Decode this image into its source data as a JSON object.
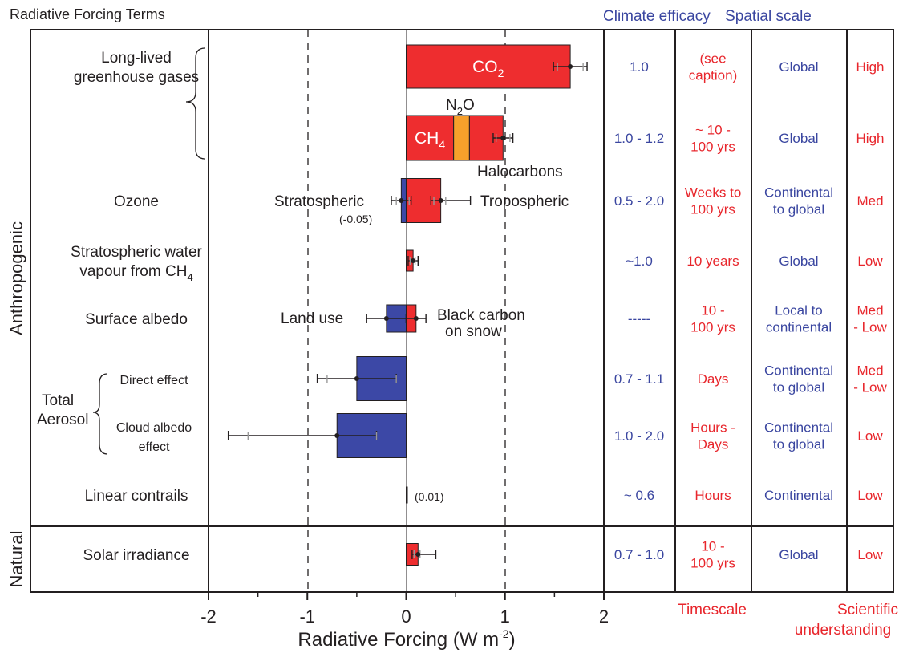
{
  "chart_data": {
    "type": "bar",
    "title": "Radiative Forcing Terms",
    "xlabel_main": "Radiative Forcing  (W m",
    "xlabel_exp": "-2",
    "xlabel_close": ")",
    "xlim": [
      -2,
      2
    ],
    "x_ticks": [
      "-2",
      "-1",
      "0",
      "1",
      "2"
    ],
    "headers": {
      "efficacy": "Climate efficacy",
      "spatial": "Spatial scale",
      "timescale": "Timescale",
      "understanding_1": "Scientific",
      "understanding_2": "understanding"
    },
    "groups": {
      "anthropogenic": "Anthropogenic",
      "natural": "Natural",
      "aerosol_1": "Total",
      "aerosol_2": "Aerosol"
    },
    "rows": [
      {
        "label": [
          "Long-lived",
          "greenhouse gases"
        ],
        "efficacy": [
          "1.0"
        ],
        "timescale": [
          "(see",
          "caption)"
        ],
        "spatial": [
          "Global"
        ],
        "understanding": [
          "High"
        ]
      },
      {
        "label": [],
        "efficacy": [
          "1.0 - 1.2"
        ],
        "timescale": [
          "~ 10 -",
          "100 yrs"
        ],
        "spatial": [
          "Global"
        ],
        "understanding": [
          "High"
        ]
      },
      {
        "label": [
          "Ozone"
        ],
        "efficacy": [
          "0.5 - 2.0"
        ],
        "timescale": [
          "Weeks to",
          "100 yrs"
        ],
        "spatial": [
          "Continental",
          "to global"
        ],
        "understanding": [
          "Med"
        ]
      },
      {
        "label": [
          "Stratospheric water",
          "vapour from CH"
        ],
        "label_sub": "4",
        "efficacy": [
          "~1.0"
        ],
        "timescale": [
          "10 years"
        ],
        "spatial": [
          "Global"
        ],
        "understanding": [
          "Low"
        ]
      },
      {
        "label": [
          "Surface albedo"
        ],
        "efficacy": [
          "-----"
        ],
        "timescale": [
          "10 -",
          "100 yrs"
        ],
        "spatial": [
          "Local to",
          "continental"
        ],
        "understanding": [
          "Med",
          "- Low"
        ]
      },
      {
        "label": [
          "Direct effect"
        ],
        "efficacy": [
          "0.7 - 1.1"
        ],
        "timescale": [
          "Days"
        ],
        "spatial": [
          "Continental",
          "to global"
        ],
        "understanding": [
          "Med",
          "- Low"
        ]
      },
      {
        "label": [
          "Cloud albedo",
          "effect"
        ],
        "efficacy": [
          "1.0 - 2.0"
        ],
        "timescale": [
          "Hours -",
          "Days"
        ],
        "spatial": [
          "Continental",
          "to global"
        ],
        "understanding": [
          "Low"
        ]
      },
      {
        "label": [
          "Linear  contrails"
        ],
        "efficacy": [
          "~ 0.6"
        ],
        "timescale": [
          "Hours"
        ],
        "spatial": [
          "Continental"
        ],
        "understanding": [
          "Low"
        ]
      },
      {
        "label": [
          "Solar irradiance"
        ],
        "efficacy": [
          "0.7 - 1.0"
        ],
        "timescale": [
          "10 -",
          "100 yrs"
        ],
        "spatial": [
          "Global"
        ],
        "understanding": [
          "Low"
        ]
      }
    ],
    "bars": [
      {
        "row": 0,
        "start": 0,
        "end": 1.66,
        "color": "#ee2d2f",
        "text": "CO",
        "sub": "2"
      },
      {
        "row": 1,
        "start": 0,
        "end": 0.48,
        "color": "#ee2d2f",
        "text": "CH",
        "sub": "4"
      },
      {
        "row": 1,
        "start": 0.48,
        "end": 0.64,
        "color": "#f7a02b"
      },
      {
        "row": 1,
        "start": 0.64,
        "end": 0.98,
        "color": "#ee2d2f"
      },
      {
        "row": 2,
        "start": -0.05,
        "end": 0,
        "color": "#3c48a6"
      },
      {
        "row": 2,
        "start": 0,
        "end": 0.35,
        "color": "#ee2d2f"
      },
      {
        "row": 3,
        "start": 0,
        "end": 0.07,
        "color": "#ee2d2f"
      },
      {
        "row": 4,
        "start": -0.2,
        "end": 0,
        "color": "#3c48a6"
      },
      {
        "row": 4,
        "start": 0,
        "end": 0.1,
        "color": "#ee2d2f"
      },
      {
        "row": 5,
        "start": -0.5,
        "end": 0,
        "color": "#3c48a6"
      },
      {
        "row": 6,
        "start": -0.7,
        "end": 0,
        "color": "#3c48a6"
      },
      {
        "row": 7,
        "start": 0,
        "end": 0.01,
        "color": "#ee2d2f"
      },
      {
        "row": 8,
        "start": 0,
        "end": 0.12,
        "color": "#ee2d2f"
      }
    ],
    "errors": [
      {
        "row": 0,
        "value": 1.66,
        "low": 1.49,
        "high": 1.83,
        "inner": [
          1.53,
          1.79
        ]
      },
      {
        "row": 1,
        "value": 0.98,
        "low": 0.88,
        "high": 1.08,
        "inner": [
          0.91,
          1.05
        ]
      },
      {
        "row": 2,
        "value": -0.05,
        "low": -0.15,
        "high": 0.05,
        "inner": [
          -0.1,
          0.03
        ]
      },
      {
        "row": 2,
        "value": 0.35,
        "low": 0.25,
        "high": 0.65,
        "inner": [
          0.28,
          0.4
        ]
      },
      {
        "row": 3,
        "value": 0.07,
        "low": 0.02,
        "high": 0.12,
        "inner": [
          0.04,
          0.09
        ]
      },
      {
        "row": 4,
        "value": -0.2,
        "low": -0.4,
        "high": 0.0
      },
      {
        "row": 4,
        "value": 0.1,
        "low": 0.0,
        "high": 0.2
      },
      {
        "row": 5,
        "value": -0.5,
        "low": -0.9,
        "high": -0.1,
        "inner": [
          -0.8,
          -0.1
        ]
      },
      {
        "row": 6,
        "value": -0.7,
        "low": -1.8,
        "high": -0.3,
        "inner": [
          -1.6,
          -0.3
        ]
      },
      {
        "row": 8,
        "value": 0.12,
        "low": 0.06,
        "high": 0.3,
        "inner": [
          0.08,
          0.14
        ]
      }
    ],
    "annotations": {
      "n2o": "N",
      "n2o_sub": "2",
      "n2o_end": "O",
      "halocarbons": "Halocarbons",
      "stratospheric": "Stratospheric",
      "strat_value": "(-0.05)",
      "tropospheric": "Tropospheric",
      "land_use": "Land use",
      "black_carbon_1": "Black carbon",
      "black_carbon_2": "on snow",
      "contrails_value": "(0.01)"
    }
  }
}
